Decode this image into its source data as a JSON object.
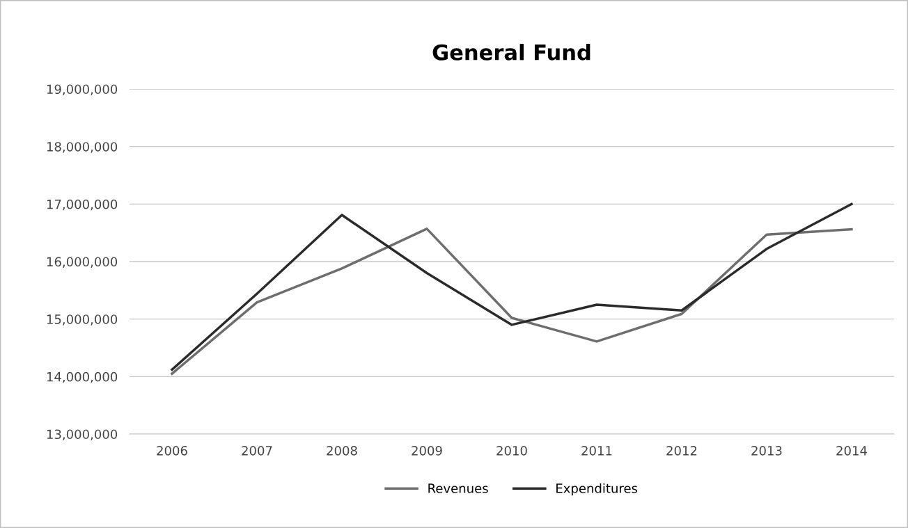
{
  "chart_data": {
    "type": "line",
    "title": "General Fund",
    "categories": [
      "2006",
      "2007",
      "2008",
      "2009",
      "2010",
      "2011",
      "2012",
      "2013",
      "2014"
    ],
    "series": [
      {
        "name": "Revenues",
        "color": "#6e6e6e",
        "values": [
          14050000,
          15290000,
          15880000,
          16570000,
          15020000,
          14610000,
          15090000,
          16470000,
          16560000
        ]
      },
      {
        "name": "Expenditures",
        "color": "#2b2b2b",
        "values": [
          14120000,
          15440000,
          16810000,
          15800000,
          14900000,
          15250000,
          15150000,
          16220000,
          17000000
        ]
      }
    ],
    "ylim": [
      13000000,
      19000000
    ],
    "yticks": [
      {
        "value": 13000000,
        "label": "13,000,000"
      },
      {
        "value": 14000000,
        "label": "14,000,000"
      },
      {
        "value": 15000000,
        "label": "15,000,000"
      },
      {
        "value": 16000000,
        "label": "16,000,000"
      },
      {
        "value": 17000000,
        "label": "17,000,000"
      },
      {
        "value": 18000000,
        "label": "18,000,000"
      },
      {
        "value": 19000000,
        "label": "19,000,000"
      }
    ],
    "grid": "y",
    "legend": "bottom",
    "marker": "none",
    "line_style": "solid"
  }
}
